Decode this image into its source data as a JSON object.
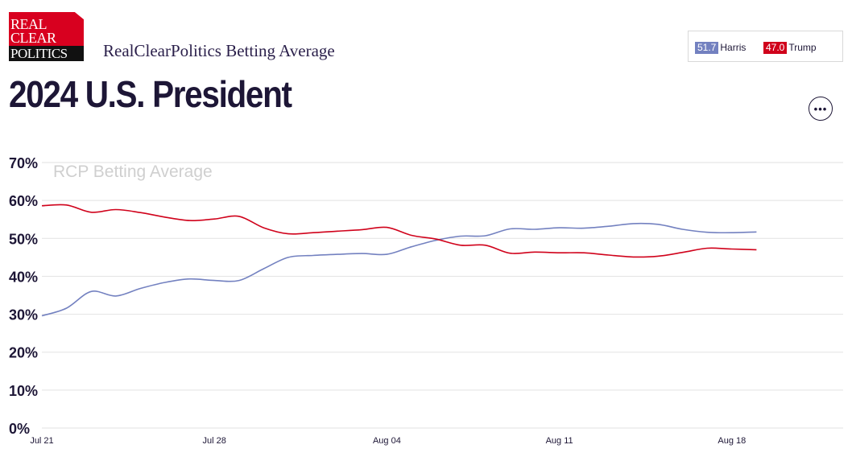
{
  "brand": {
    "logo_lines": [
      "REAL",
      "CLEAR",
      "POLITICS"
    ],
    "subtitle": "RealClearPolitics Betting Average"
  },
  "page_title": "2024 U.S. President",
  "legend": [
    {
      "value": "51.7",
      "name": "Harris",
      "color": "#7381c0"
    },
    {
      "value": "47.0",
      "name": "Trump",
      "color": "#d0021b"
    }
  ],
  "more_button": {
    "icon": "ellipsis-icon",
    "glyph": "•••"
  },
  "chart_data": {
    "type": "line",
    "watermark": "RCP Betting Average",
    "xlim": [
      "Jul 21",
      "Aug 21"
    ],
    "x_ticks": [
      "Jul 21",
      "Jul 28",
      "Aug 04",
      "Aug 11",
      "Aug 18"
    ],
    "ylim": [
      0,
      70
    ],
    "y_ticks": [
      "0%",
      "10%",
      "20%",
      "30%",
      "40%",
      "50%",
      "60%",
      "70%"
    ],
    "y_tick_values": [
      0,
      10,
      20,
      30,
      40,
      50,
      60,
      70
    ],
    "grid": true,
    "series": [
      {
        "name": "Harris",
        "color": "#7381c0",
        "x": [
          "Jul 21",
          "Jul 22",
          "Jul 23",
          "Jul 24",
          "Jul 25",
          "Jul 26",
          "Jul 27",
          "Jul 28",
          "Jul 29",
          "Jul 30",
          "Jul 31",
          "Aug 01",
          "Aug 02",
          "Aug 03",
          "Aug 04",
          "Aug 05",
          "Aug 06",
          "Aug 07",
          "Aug 08",
          "Aug 09",
          "Aug 10",
          "Aug 11",
          "Aug 12",
          "Aug 13",
          "Aug 14",
          "Aug 15",
          "Aug 16",
          "Aug 17",
          "Aug 18",
          "Aug 19"
        ],
        "values": [
          29.6,
          31.6,
          36.0,
          34.8,
          36.8,
          38.4,
          39.3,
          38.9,
          38.9,
          42.0,
          45.0,
          45.5,
          45.8,
          46.0,
          45.8,
          47.8,
          49.5,
          50.6,
          50.7,
          52.5,
          52.4,
          52.8,
          52.7,
          53.2,
          53.9,
          53.7,
          52.4,
          51.6,
          51.5,
          51.7
        ]
      },
      {
        "name": "Trump",
        "color": "#d0021b",
        "x": [
          "Jul 21",
          "Jul 22",
          "Jul 23",
          "Jul 24",
          "Jul 25",
          "Jul 26",
          "Jul 27",
          "Jul 28",
          "Jul 29",
          "Jul 30",
          "Jul 31",
          "Aug 01",
          "Aug 02",
          "Aug 03",
          "Aug 04",
          "Aug 05",
          "Aug 06",
          "Aug 07",
          "Aug 08",
          "Aug 09",
          "Aug 10",
          "Aug 11",
          "Aug 12",
          "Aug 13",
          "Aug 14",
          "Aug 15",
          "Aug 16",
          "Aug 17",
          "Aug 18",
          "Aug 19"
        ],
        "values": [
          58.6,
          58.8,
          56.9,
          57.6,
          56.8,
          55.6,
          54.7,
          55.1,
          55.8,
          52.8,
          51.2,
          51.5,
          51.9,
          52.3,
          52.9,
          50.8,
          49.8,
          48.2,
          48.2,
          46.1,
          46.4,
          46.2,
          46.2,
          45.6,
          45.1,
          45.3,
          46.3,
          47.4,
          47.2,
          47.0
        ]
      }
    ]
  }
}
